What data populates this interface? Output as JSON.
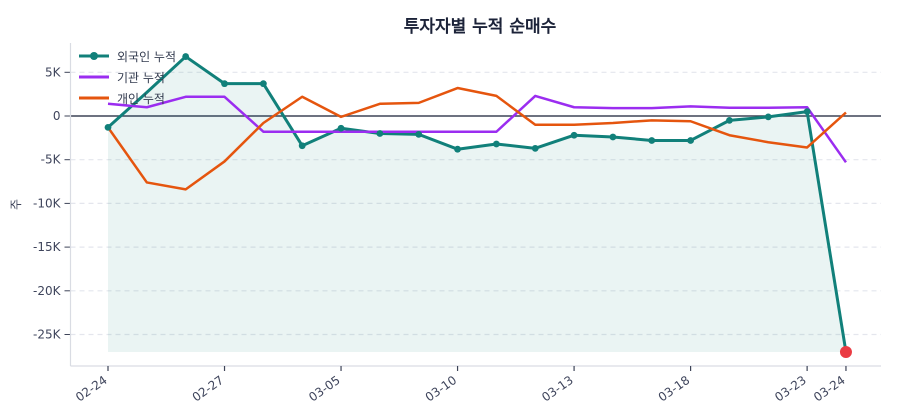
{
  "chart_data": {
    "type": "line",
    "title": "투자자별 누적 순매수",
    "ylabel": "주",
    "x_tick_labels": [
      {
        "index": 0,
        "label": "02-24"
      },
      {
        "index": 3,
        "label": "02-27"
      },
      {
        "index": 6,
        "label": "03-05"
      },
      {
        "index": 9,
        "label": "03-10"
      },
      {
        "index": 12,
        "label": "03-13"
      },
      {
        "index": 15,
        "label": "03-18"
      },
      {
        "index": 18,
        "label": "03-23"
      },
      {
        "index": 19,
        "label": "03-24"
      }
    ],
    "y_ticks": [
      {
        "value": 5000,
        "label": "5K"
      },
      {
        "value": 0,
        "label": "0"
      },
      {
        "value": -5000,
        "label": "-5K"
      },
      {
        "value": -10000,
        "label": "-10K"
      },
      {
        "value": -15000,
        "label": "-15K"
      },
      {
        "value": -20000,
        "label": "-20K"
      },
      {
        "value": -25000,
        "label": "-25K"
      }
    ],
    "series": [
      {
        "name": "외국인 누적",
        "color": "#11807a",
        "marker": "circle",
        "fill_to_min": true,
        "values": [
          -1300,
          2700,
          6800,
          3700,
          3700,
          -3400,
          -1400,
          -2000,
          -2100,
          -3800,
          -3200,
          -3700,
          -2200,
          -2400,
          -2800,
          -2800,
          -500,
          -100,
          500,
          -27000
        ]
      },
      {
        "name": "기관 누적",
        "color": "#9b2df0",
        "marker": "none",
        "fill_to_min": false,
        "values": [
          1400,
          1000,
          2200,
          2200,
          -1800,
          -1800,
          -1800,
          -1800,
          -1800,
          -1800,
          -1800,
          2300,
          1000,
          900,
          900,
          1100,
          950,
          950,
          1000,
          -5300
        ]
      },
      {
        "name": "개인 누적",
        "color": "#e5550e",
        "marker": "none",
        "fill_to_min": false,
        "values": [
          -1300,
          -7600,
          -8400,
          -5200,
          -800,
          2200,
          -100,
          1400,
          1500,
          3200,
          2300,
          -1000,
          -1000,
          -800,
          -500,
          -600,
          -2200,
          -3000,
          -3600,
          400
        ]
      }
    ],
    "last_point": {
      "series": "외국인 누적",
      "marker_color": "#ea3b43"
    }
  }
}
